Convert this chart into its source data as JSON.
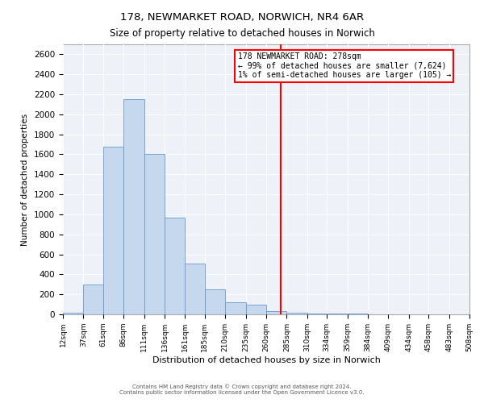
{
  "title": "178, NEWMARKET ROAD, NORWICH, NR4 6AR",
  "subtitle": "Size of property relative to detached houses in Norwich",
  "xlabel": "Distribution of detached houses by size in Norwich",
  "ylabel": "Number of detached properties",
  "bar_color": "#c5d8ed",
  "bar_edge_color": "#6699cc",
  "background_color": "#eef2f8",
  "grid_color": "#ffffff",
  "bin_edges": [
    12,
    37,
    61,
    86,
    111,
    136,
    161,
    185,
    210,
    235,
    260,
    285,
    310,
    334,
    359,
    384,
    409,
    434,
    458,
    483,
    508
  ],
  "bar_heights": [
    20,
    300,
    1675,
    2150,
    1600,
    970,
    510,
    250,
    120,
    100,
    30,
    15,
    8,
    5,
    5,
    3,
    2,
    2,
    2,
    2
  ],
  "red_line_x": 278,
  "ylim": [
    0,
    2700
  ],
  "yticks": [
    0,
    200,
    400,
    600,
    800,
    1000,
    1200,
    1400,
    1600,
    1800,
    2000,
    2200,
    2400,
    2600
  ],
  "annotation_title": "178 NEWMARKET ROAD: 278sqm",
  "annotation_line1": "← 99% of detached houses are smaller (7,624)",
  "annotation_line2": "1% of semi-detached houses are larger (105) →",
  "footer1": "Contains HM Land Registry data © Crown copyright and database right 2024.",
  "footer2": "Contains public sector information licensed under the Open Government Licence v3.0.",
  "xtick_labels": [
    "12sqm",
    "37sqm",
    "61sqm",
    "86sqm",
    "111sqm",
    "136sqm",
    "161sqm",
    "185sqm",
    "210sqm",
    "235sqm",
    "260sqm",
    "285sqm",
    "310sqm",
    "334sqm",
    "359sqm",
    "384sqm",
    "409sqm",
    "434sqm",
    "458sqm",
    "483sqm",
    "508sqm"
  ]
}
